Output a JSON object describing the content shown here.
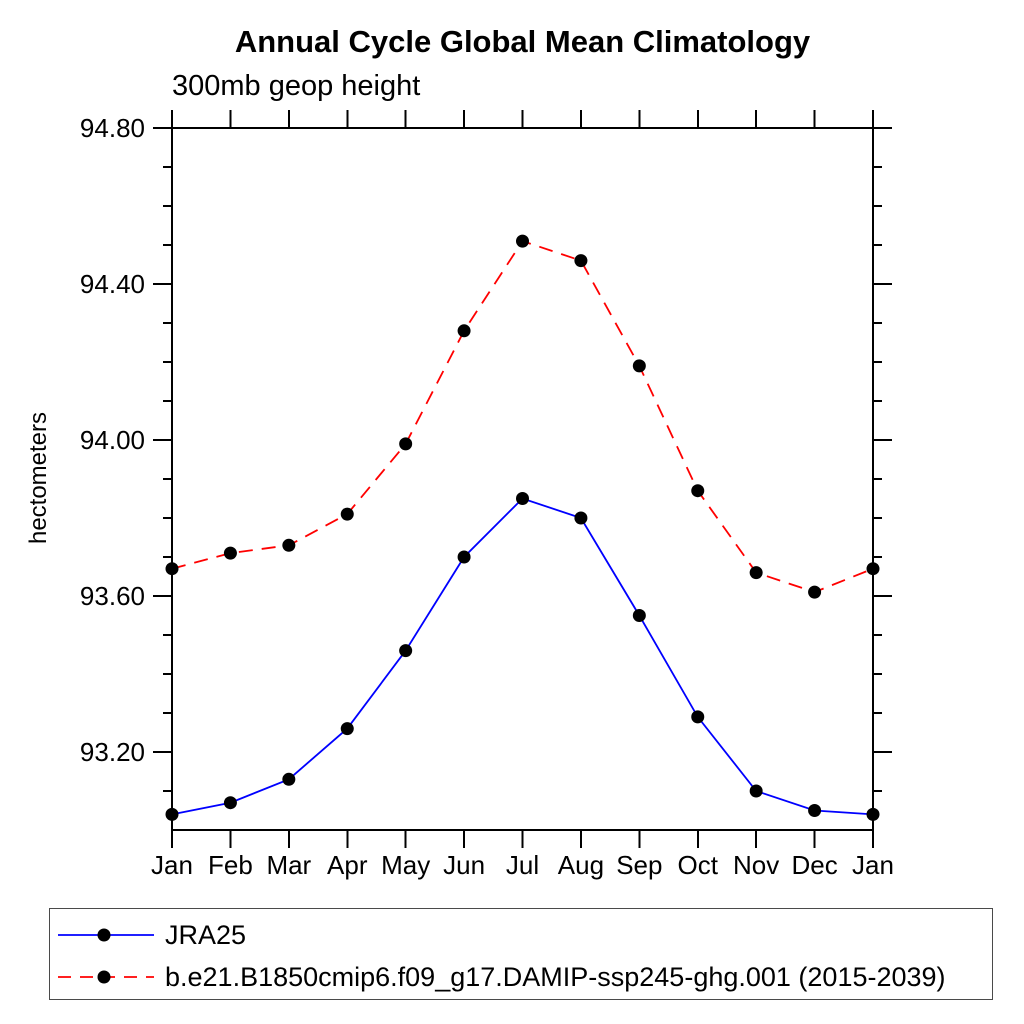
{
  "title": "Annual Cycle Global Mean Climatology",
  "subtitle": "300mb geop height",
  "ylabel": "hectometers",
  "colors": {
    "jra25_line": "#0000ff",
    "model_line": "#ff0000",
    "marker": "#000000",
    "axis": "#000000"
  },
  "legend": {
    "items": [
      {
        "label": "JRA25",
        "color": "#0000ff",
        "style": "solid",
        "marker": "filled-circle"
      },
      {
        "label": "b.e21.B1850cmip6.f09_g17.DAMIP-ssp245-ghg.001 (2015-2039)",
        "color": "#ff0000",
        "style": "dashed",
        "marker": "filled-circle"
      }
    ]
  },
  "chart_data": {
    "type": "line",
    "title": "Annual Cycle Global Mean Climatology",
    "subtitle": "300mb geop height",
    "xlabel": "",
    "ylabel": "hectometers",
    "categories": [
      "Jan",
      "Feb",
      "Mar",
      "Apr",
      "May",
      "Jun",
      "Jul",
      "Aug",
      "Sep",
      "Oct",
      "Nov",
      "Dec",
      "Jan"
    ],
    "series": [
      {
        "name": "JRA25",
        "color": "#0000ff",
        "style": "solid",
        "marker": "filled-circle",
        "marker_color": "#000000",
        "values": [
          93.04,
          93.07,
          93.13,
          93.26,
          93.46,
          93.7,
          93.85,
          93.8,
          93.55,
          93.29,
          93.1,
          93.05,
          93.04
        ]
      },
      {
        "name": "b.e21.B1850cmip6.f09_g17.DAMIP-ssp245-ghg.001 (2015-2039)",
        "color": "#ff0000",
        "style": "dashed",
        "marker": "filled-circle",
        "marker_color": "#000000",
        "values": [
          93.67,
          93.71,
          93.73,
          93.81,
          93.99,
          94.28,
          94.51,
          94.46,
          94.19,
          93.87,
          93.66,
          93.61,
          93.67
        ]
      }
    ],
    "ylim": [
      93.0,
      94.8
    ],
    "ytick_major": [
      93.2,
      93.6,
      94.0,
      94.4,
      94.8
    ],
    "ytick_labels": [
      "93.20",
      "93.60",
      "94.00",
      "94.40",
      "94.80"
    ],
    "ytick_minor_step": 0.1,
    "grid": false,
    "legend_position": "bottom-left-box"
  }
}
